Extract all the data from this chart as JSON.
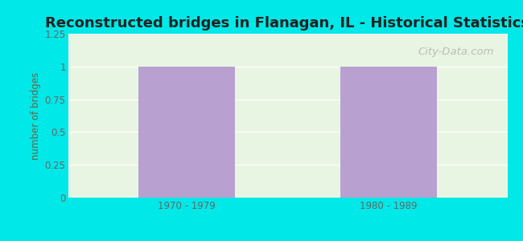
{
  "title": "Reconstructed bridges in Flanagan, IL - Historical Statistics",
  "categories": [
    "1970 - 1979",
    "1980 - 1989"
  ],
  "values": [
    1,
    1
  ],
  "bar_color": "#b8a0d0",
  "ylabel": "number of bridges",
  "ylim": [
    0,
    1.25
  ],
  "yticks": [
    0,
    0.25,
    0.5,
    0.75,
    1,
    1.25
  ],
  "background_color": "#00e8e8",
  "plot_bg_color": "#e8f5e2",
  "title_fontsize": 13,
  "axis_label_color": "#666644",
  "tick_label_color": "#666666",
  "watermark_text": "City-Data.com",
  "bar_width": 0.22,
  "x_positions": [
    0.27,
    0.73
  ],
  "xlim": [
    0,
    1
  ]
}
